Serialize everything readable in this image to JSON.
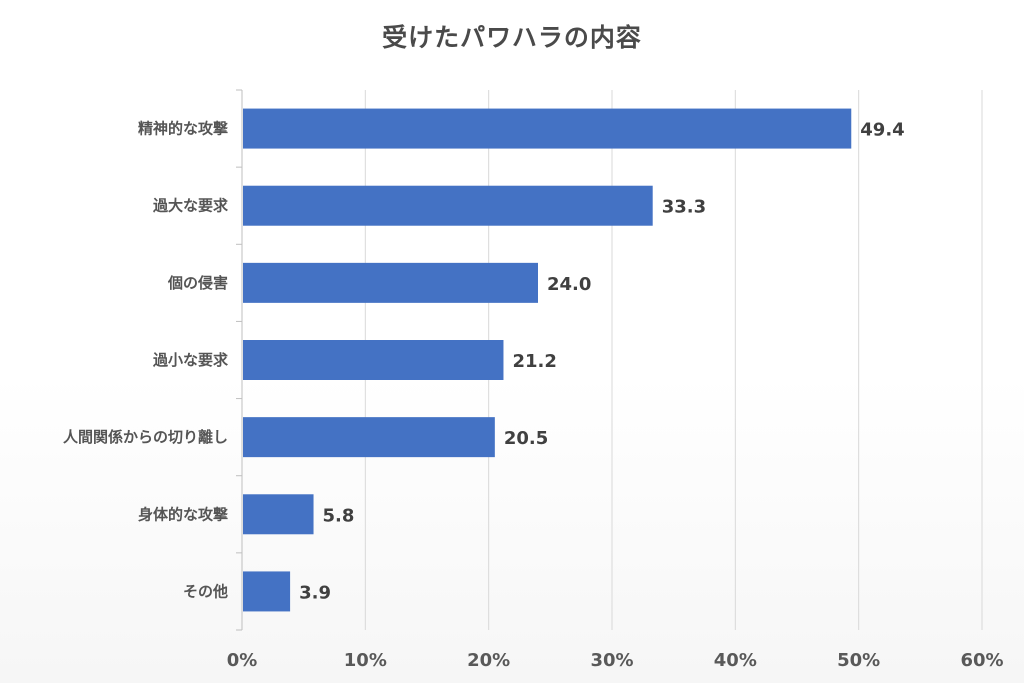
{
  "chart_data": {
    "type": "bar",
    "orientation": "horizontal",
    "title": "受けたパワハラの内容",
    "categories": [
      "精神的な攻撃",
      "過大な要求",
      "個の侵害",
      "過小な要求",
      "人間関係からの切り離し",
      "身体的な攻撃",
      "その他"
    ],
    "values": [
      49.4,
      33.3,
      24.0,
      21.2,
      20.5,
      5.8,
      3.9
    ],
    "value_labels": [
      "49.4",
      "33.3",
      "24.0",
      "21.2",
      "20.5",
      "5.8",
      "3.9"
    ],
    "xlim": [
      0,
      60
    ],
    "xticks": [
      0,
      10,
      20,
      30,
      40,
      50,
      60
    ],
    "xtick_labels": [
      "0%",
      "10%",
      "20%",
      "30%",
      "40%",
      "50%",
      "60%"
    ],
    "grid": true,
    "legend": "none",
    "colors": {
      "bar": "#4472C4",
      "grid": "#d9d9d9",
      "axis": "#bfbfbf"
    }
  }
}
